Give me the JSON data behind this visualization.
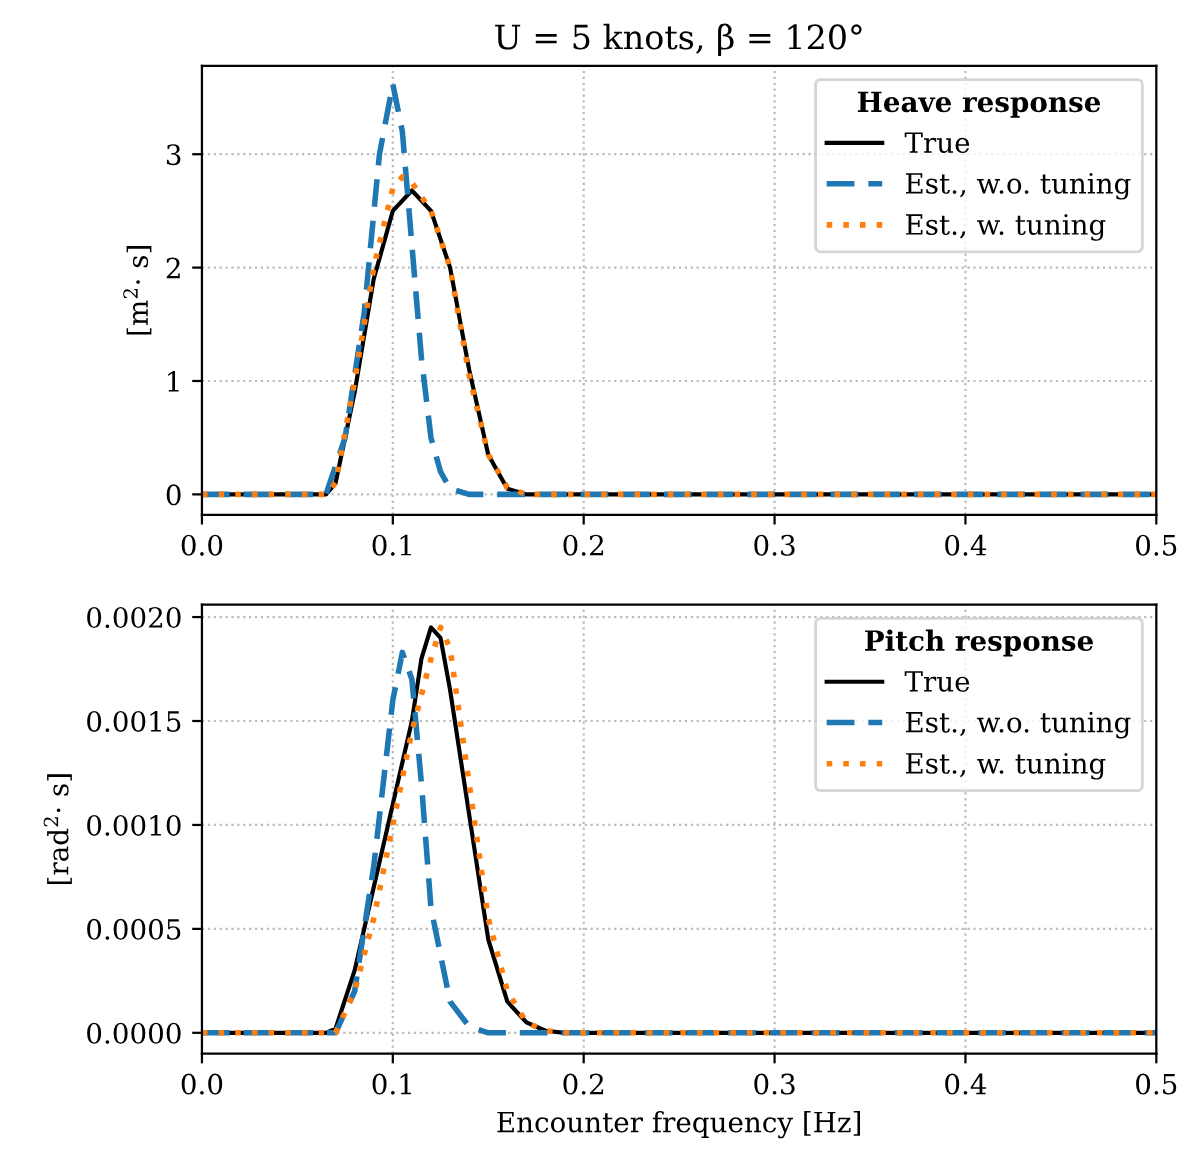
{
  "chart_data": [
    {
      "type": "line",
      "title": "U = 5 knots, β = 120°",
      "ylabel": "[m$^{2}$· s]",
      "legend_title": "Heave response",
      "legend": "top right",
      "grid": true,
      "xlim": [
        0.0,
        0.5
      ],
      "xticks": [
        {
          "value": 0.0,
          "label": "0.0"
        },
        {
          "value": 0.1,
          "label": "0.1"
        },
        {
          "value": 0.2,
          "label": "0.2"
        },
        {
          "value": 0.3,
          "label": "0.3"
        },
        {
          "value": 0.4,
          "label": "0.4"
        },
        {
          "value": 0.5,
          "label": "0.5"
        }
      ],
      "ylim": [
        -0.18,
        3.78
      ],
      "yticks": [
        0,
        1,
        2,
        3
      ],
      "series": [
        {
          "name": "True",
          "color": "#000000",
          "line_style": "solid",
          "x": [
            0,
            0.065,
            0.07,
            0.08,
            0.09,
            0.1,
            0.11,
            0.12,
            0.13,
            0.14,
            0.15,
            0.16,
            0.17,
            0.5
          ],
          "values": [
            0,
            0,
            0.1,
            0.9,
            1.9,
            2.5,
            2.68,
            2.5,
            2.0,
            1.1,
            0.35,
            0.05,
            0,
            0
          ]
        },
        {
          "name": "Est., w.o. tuning",
          "color": "#1f77b4",
          "line_style": "dashed",
          "x": [
            0,
            0.065,
            0.075,
            0.085,
            0.093,
            0.1,
            0.105,
            0.11,
            0.115,
            0.12,
            0.125,
            0.13,
            0.14,
            0.5
          ],
          "values": [
            0,
            0,
            0.5,
            1.6,
            3.0,
            3.62,
            3.2,
            2.2,
            1.2,
            0.5,
            0.2,
            0.05,
            0,
            0
          ]
        },
        {
          "name": "Est., w. tuning",
          "color": "#ff7f0e",
          "line_style": "dotted",
          "x": [
            0,
            0.065,
            0.07,
            0.08,
            0.09,
            0.1,
            0.105,
            0.11,
            0.12,
            0.13,
            0.14,
            0.15,
            0.16,
            0.17,
            0.5
          ],
          "values": [
            0,
            0,
            0.1,
            1.0,
            2.0,
            2.7,
            2.8,
            2.75,
            2.5,
            2.0,
            1.05,
            0.35,
            0.06,
            0,
            0
          ]
        }
      ]
    },
    {
      "type": "line",
      "xlabel": "Encounter frequency [Hz]",
      "ylabel": "[rad$^{2}$· s]",
      "legend_title": "Pitch response",
      "legend": "top right",
      "grid": true,
      "xlim": [
        0.0,
        0.5
      ],
      "xticks": [
        {
          "value": 0.0,
          "label": "0.0"
        },
        {
          "value": 0.1,
          "label": "0.1"
        },
        {
          "value": 0.2,
          "label": "0.2"
        },
        {
          "value": 0.3,
          "label": "0.3"
        },
        {
          "value": 0.4,
          "label": "0.4"
        },
        {
          "value": 0.5,
          "label": "0.5"
        }
      ],
      "ylim": [
        -0.0001,
        0.00206
      ],
      "yticks": [
        {
          "value": 0.0,
          "label": "0.0000"
        },
        {
          "value": 0.0005,
          "label": "0.0005"
        },
        {
          "value": 0.001,
          "label": "0.0010"
        },
        {
          "value": 0.0015,
          "label": "0.0015"
        },
        {
          "value": 0.002,
          "label": "0.0020"
        }
      ],
      "series": [
        {
          "name": "True",
          "color": "#000000",
          "line_style": "solid",
          "x": [
            0,
            0.065,
            0.07,
            0.08,
            0.09,
            0.1,
            0.11,
            0.115,
            0.12,
            0.125,
            0.13,
            0.14,
            0.15,
            0.16,
            0.17,
            0.18,
            0.19,
            0.5
          ],
          "values": [
            0,
            0,
            2e-05,
            0.0003,
            0.0007,
            0.0011,
            0.0015,
            0.0018,
            0.00195,
            0.0019,
            0.00165,
            0.00105,
            0.00045,
            0.00015,
            5e-05,
            1e-05,
            0,
            0
          ]
        },
        {
          "name": "Est., w.o. tuning",
          "color": "#1f77b4",
          "line_style": "dashed",
          "x": [
            0,
            0.07,
            0.08,
            0.09,
            0.1,
            0.105,
            0.11,
            0.115,
            0.12,
            0.13,
            0.14,
            0.15,
            0.5
          ],
          "values": [
            0,
            0,
            0.0002,
            0.0008,
            0.0016,
            0.00183,
            0.0017,
            0.0012,
            0.0006,
            0.00015,
            3e-05,
            0,
            0
          ]
        },
        {
          "name": "Est., w. tuning",
          "color": "#ff7f0e",
          "line_style": "dotted",
          "x": [
            0,
            0.07,
            0.08,
            0.09,
            0.1,
            0.11,
            0.12,
            0.125,
            0.13,
            0.14,
            0.15,
            0.16,
            0.17,
            0.18,
            0.19,
            0.5
          ],
          "values": [
            0,
            0,
            0.0002,
            0.00055,
            0.001,
            0.00145,
            0.0018,
            0.00195,
            0.00185,
            0.0012,
            0.00055,
            0.0002,
            5e-05,
            1e-05,
            0,
            0
          ]
        }
      ]
    }
  ]
}
